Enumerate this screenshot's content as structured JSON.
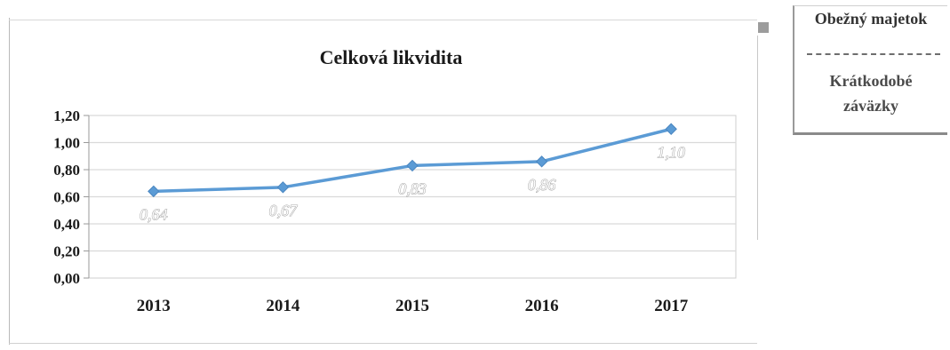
{
  "chart_data": {
    "type": "line",
    "title": "Celková likvidita",
    "categories": [
      "2013",
      "2014",
      "2015",
      "2016",
      "2017"
    ],
    "series": [
      {
        "values": [
          0.64,
          0.67,
          0.83,
          0.86,
          1.1
        ],
        "data_labels": [
          "0,64",
          "0,67",
          "0,83",
          "0,86",
          "1,10"
        ],
        "color": "#5b9bd5"
      }
    ],
    "ylim": [
      0,
      1.2
    ],
    "yticks": [
      "0,00",
      "0,20",
      "0,40",
      "0,60",
      "0,80",
      "1,00",
      "1,20"
    ],
    "grid": true,
    "marker": "diamond"
  },
  "legend": {
    "numerator": "Obežný majetok",
    "denominator_line1": "Krátkodobé",
    "denominator_line2": "záväzky"
  }
}
